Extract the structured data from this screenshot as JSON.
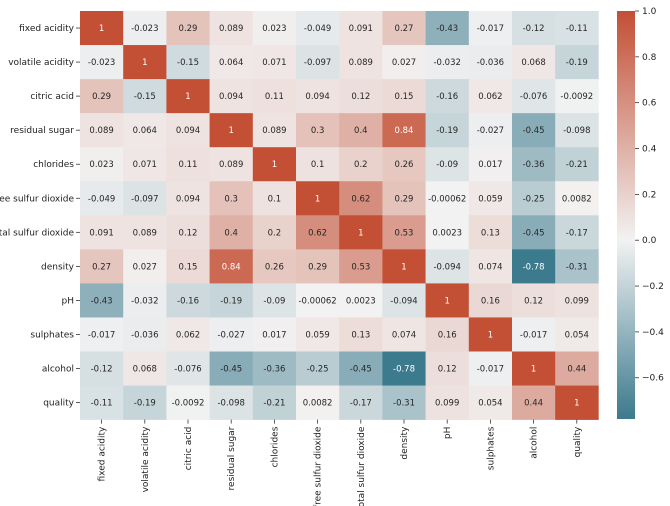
{
  "chart_data": {
    "type": "heatmap",
    "title": "",
    "xlabel": "",
    "ylabel": "",
    "labels": [
      "fixed acidity",
      "volatile acidity",
      "citric acid",
      "residual sugar",
      "chlorides",
      "free sulfur dioxide",
      "total sulfur dioxide",
      "density",
      "pH",
      "sulphates",
      "alcohol",
      "quality"
    ],
    "matrix": [
      [
        1,
        -0.023,
        0.29,
        0.089,
        0.023,
        -0.049,
        0.091,
        0.27,
        -0.43,
        -0.017,
        -0.12,
        -0.11
      ],
      [
        -0.023,
        1,
        -0.15,
        0.064,
        0.071,
        -0.097,
        0.089,
        0.027,
        -0.032,
        -0.036,
        0.068,
        -0.19
      ],
      [
        0.29,
        -0.15,
        1,
        0.094,
        0.11,
        0.094,
        0.12,
        0.15,
        -0.16,
        0.062,
        -0.076,
        -0.0092
      ],
      [
        0.089,
        0.064,
        0.094,
        1,
        0.089,
        0.3,
        0.4,
        0.84,
        -0.19,
        -0.027,
        -0.45,
        -0.098
      ],
      [
        0.023,
        0.071,
        0.11,
        0.089,
        1,
        0.1,
        0.2,
        0.26,
        -0.09,
        0.017,
        -0.36,
        -0.21
      ],
      [
        -0.049,
        -0.097,
        0.094,
        0.3,
        0.1,
        1,
        0.62,
        0.29,
        -0.00062,
        0.059,
        -0.25,
        0.0082
      ],
      [
        0.091,
        0.089,
        0.12,
        0.4,
        0.2,
        0.62,
        1,
        0.53,
        0.0023,
        0.13,
        -0.45,
        -0.17
      ],
      [
        0.27,
        0.027,
        0.15,
        0.84,
        0.26,
        0.29,
        0.53,
        1,
        -0.094,
        0.074,
        -0.78,
        -0.31
      ],
      [
        -0.43,
        -0.032,
        -0.16,
        -0.19,
        -0.09,
        -0.00062,
        0.0023,
        -0.094,
        1,
        0.16,
        0.12,
        0.099
      ],
      [
        -0.017,
        -0.036,
        0.062,
        -0.027,
        0.017,
        0.059,
        0.13,
        0.074,
        0.16,
        1,
        -0.017,
        0.054
      ],
      [
        -0.12,
        0.068,
        -0.076,
        -0.45,
        -0.36,
        -0.25,
        -0.45,
        -0.78,
        0.12,
        -0.017,
        1,
        0.44
      ],
      [
        -0.11,
        -0.19,
        -0.0092,
        -0.098,
        -0.21,
        0.0082,
        -0.17,
        -0.31,
        0.099,
        0.054,
        0.44,
        1
      ]
    ],
    "cell_text": [
      [
        "1",
        "-0.023",
        "0.29",
        "0.089",
        "0.023",
        "-0.049",
        "0.091",
        "0.27",
        "-0.43",
        "-0.017",
        "-0.12",
        "-0.11"
      ],
      [
        "-0.023",
        "1",
        "-0.15",
        "0.064",
        "0.071",
        "-0.097",
        "0.089",
        "0.027",
        "-0.032",
        "-0.036",
        "0.068",
        "-0.19"
      ],
      [
        "0.29",
        "-0.15",
        "1",
        "0.094",
        "0.11",
        "0.094",
        "0.12",
        "0.15",
        "-0.16",
        "0.062",
        "-0.076",
        "-0.0092"
      ],
      [
        "0.089",
        "0.064",
        "0.094",
        "1",
        "0.089",
        "0.3",
        "0.4",
        "0.84",
        "-0.19",
        "-0.027",
        "-0.45",
        "-0.098"
      ],
      [
        "0.023",
        "0.071",
        "0.11",
        "0.089",
        "1",
        "0.1",
        "0.2",
        "0.26",
        "-0.09",
        "0.017",
        "-0.36",
        "-0.21"
      ],
      [
        "-0.049",
        "-0.097",
        "0.094",
        "0.3",
        "0.1",
        "1",
        "0.62",
        "0.29",
        "-0.00062",
        "0.059",
        "-0.25",
        "0.0082"
      ],
      [
        "0.091",
        "0.089",
        "0.12",
        "0.4",
        "0.2",
        "0.62",
        "1",
        "0.53",
        "0.0023",
        "0.13",
        "-0.45",
        "-0.17"
      ],
      [
        "0.27",
        "0.027",
        "0.15",
        "0.84",
        "0.26",
        "0.29",
        "0.53",
        "1",
        "-0.094",
        "0.074",
        "-0.78",
        "-0.31"
      ],
      [
        "-0.43",
        "-0.032",
        "-0.16",
        "-0.19",
        "-0.09",
        "-0.00062",
        "0.0023",
        "-0.094",
        "1",
        "0.16",
        "0.12",
        "0.099"
      ],
      [
        "-0.017",
        "-0.036",
        "0.062",
        "-0.027",
        "0.017",
        "0.059",
        "0.13",
        "0.074",
        "0.16",
        "1",
        "-0.017",
        "0.054"
      ],
      [
        "-0.12",
        "0.068",
        "-0.076",
        "-0.45",
        "-0.36",
        "-0.25",
        "-0.45",
        "-0.78",
        "0.12",
        "-0.017",
        "1",
        "0.44"
      ],
      [
        "-0.11",
        "-0.19",
        "-0.0092",
        "-0.098",
        "-0.21",
        "0.0082",
        "-0.17",
        "-0.31",
        "0.099",
        "0.054",
        "0.44",
        "1"
      ]
    ],
    "colorbar": {
      "range": [
        -0.78,
        1
      ],
      "ticks": [
        1.0,
        0.8,
        0.6,
        0.4,
        0.2,
        0.0,
        -0.2,
        -0.4,
        -0.6
      ],
      "tick_labels": [
        "1.0",
        "0.8",
        "0.6",
        "0.4",
        "0.2",
        "0.0",
        "−0.2",
        "−0.4",
        "−0.6"
      ],
      "colors": {
        "low": "#3c7a8d",
        "mid": "#f2f2f2",
        "high": "#c34f35"
      }
    },
    "grid": false,
    "legend": "colorbar-right"
  }
}
